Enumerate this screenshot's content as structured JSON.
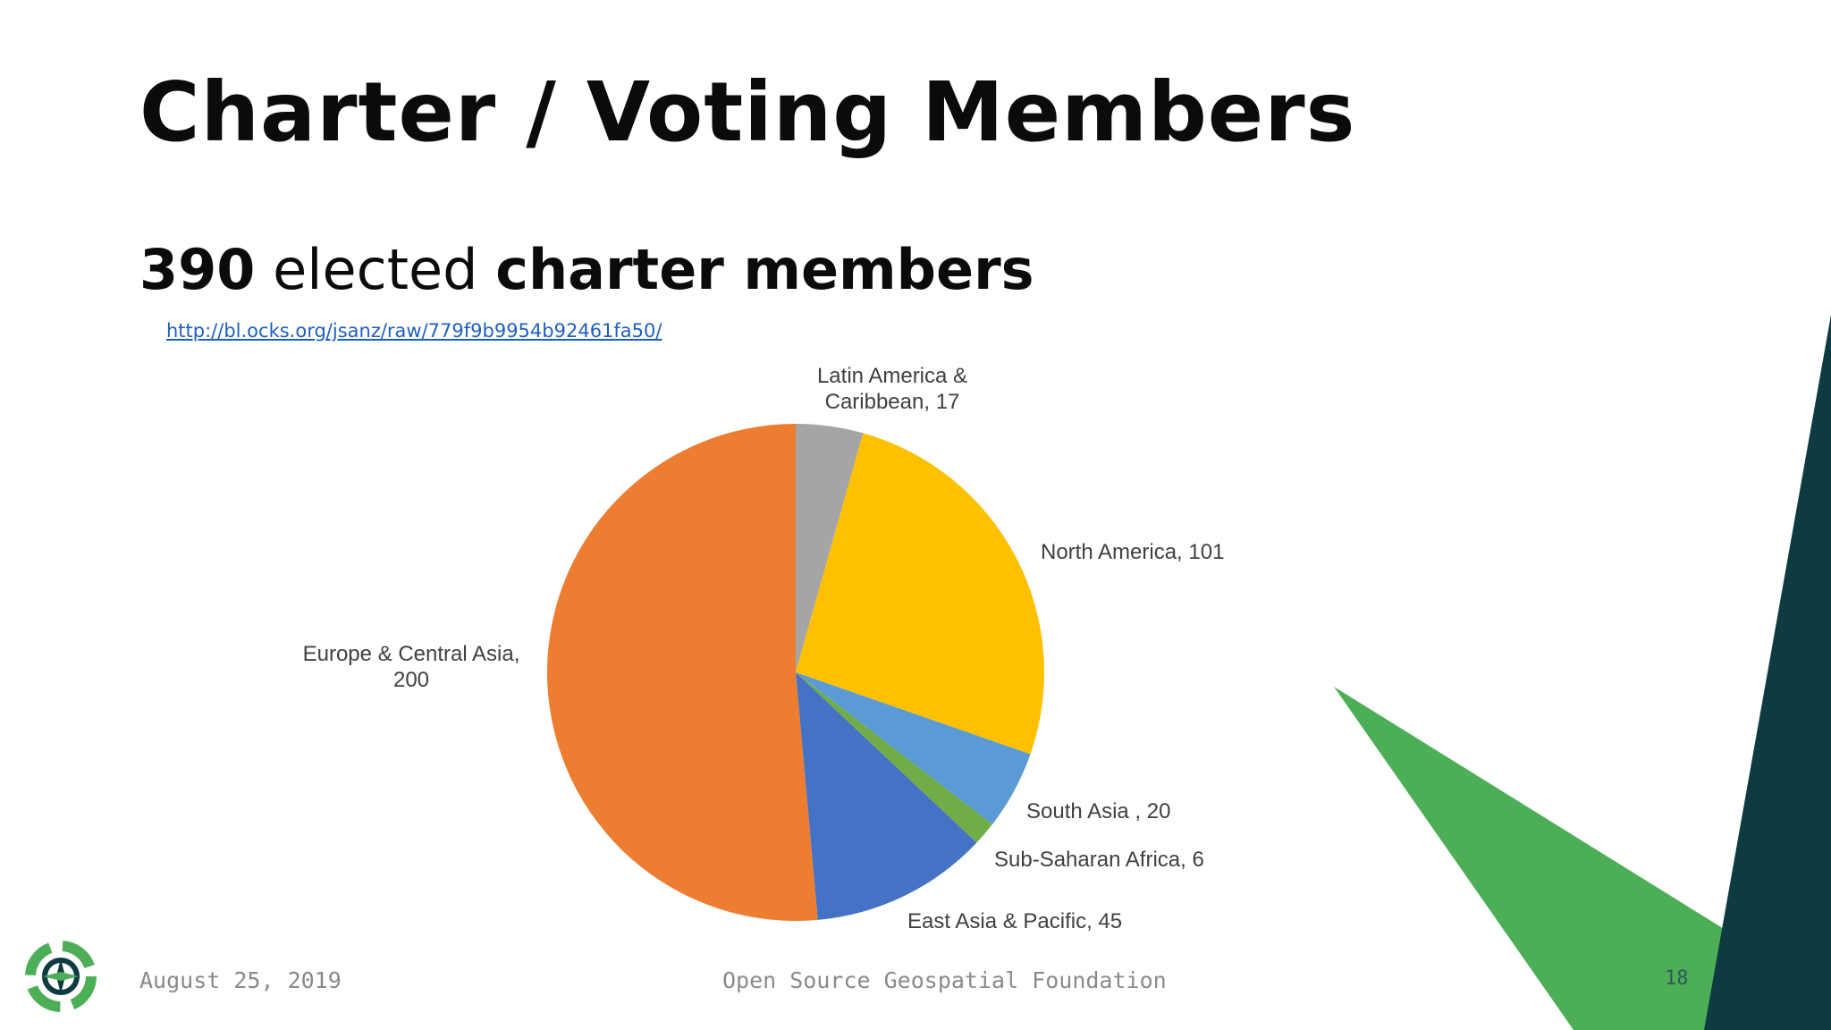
{
  "slide": {
    "title": "Charter / Voting Members",
    "subtitle_count": "390",
    "subtitle_mid": " elected ",
    "subtitle_end": "charter members",
    "link": "http://bl.ocks.org/jsanz/raw/779f9b9954b92461fa50/"
  },
  "footer": {
    "date": "August 25, 2019",
    "org": "Open Source Geospatial Foundation",
    "page": "18"
  },
  "colors": {
    "dark_teal": "#0e3b42",
    "green": "#4caf58"
  },
  "chart_data": {
    "type": "pie",
    "title": "",
    "slices": [
      {
        "label": "Latin America & Caribbean",
        "value": 17,
        "color": "#a5a5a5",
        "text_lines": [
          "Latin America &",
          "Caribbean, 17"
        ]
      },
      {
        "label": "North America",
        "value": 101,
        "color": "#ffc000",
        "text_lines": [
          "North America, 101"
        ]
      },
      {
        "label": "South Asia",
        "value": 20,
        "color": "#5b9bd5",
        "text_lines": [
          "South Asia , 20"
        ]
      },
      {
        "label": "Sub-Saharan Africa",
        "value": 6,
        "color": "#70ad47",
        "text_lines": [
          "Sub-Saharan Africa, 6"
        ]
      },
      {
        "label": "East Asia & Pacific",
        "value": 45,
        "color": "#4472c4",
        "text_lines": [
          "East Asia & Pacific, 45"
        ]
      },
      {
        "label": "Europe & Central Asia",
        "value": 200,
        "color": "#ed7d31",
        "text_lines": [
          "Europe & Central Asia,",
          "200"
        ]
      }
    ]
  }
}
